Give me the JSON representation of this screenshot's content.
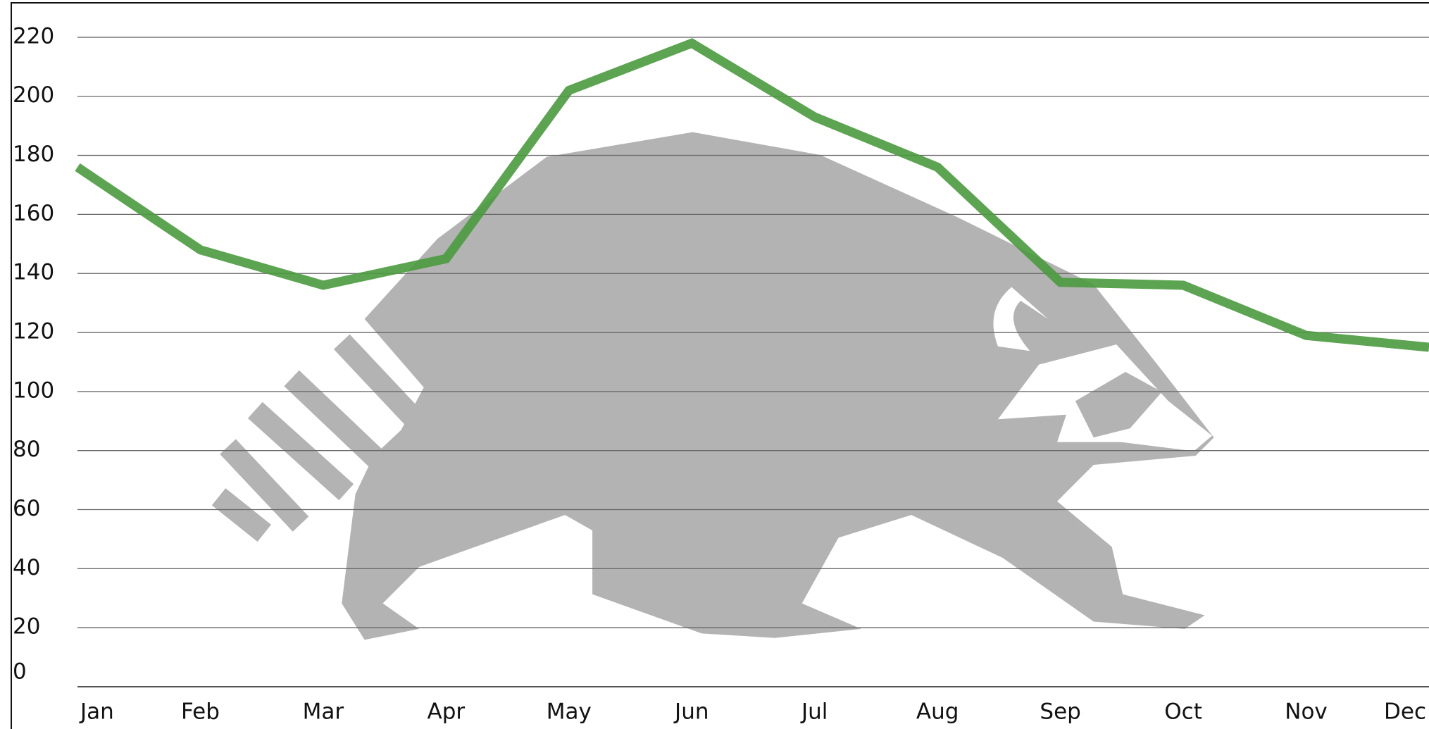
{
  "chart_data": {
    "type": "line",
    "categories": [
      "Jan",
      "Feb",
      "Mar",
      "Apr",
      "May",
      "Jun",
      "Jul",
      "Aug",
      "Sep",
      "Oct",
      "Nov",
      "Dec"
    ],
    "series": [
      {
        "color": "#4a9a3e",
        "values": [
          176,
          148,
          136,
          145,
          202,
          218,
          193,
          176,
          137,
          136,
          119,
          115
        ]
      }
    ],
    "ylim": [
      0,
      230
    ],
    "yticks": [
      0,
      20,
      40,
      60,
      80,
      100,
      120,
      140,
      160,
      180,
      200,
      220
    ],
    "grid": true
  }
}
